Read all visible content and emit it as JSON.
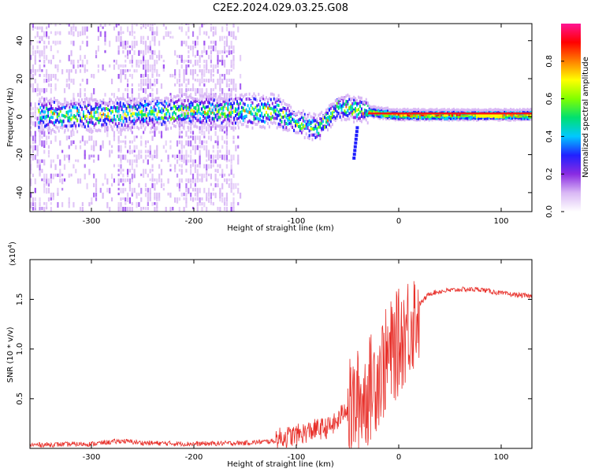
{
  "figure": {
    "title": "C2E2.2024.029.03.25.G08"
  },
  "chart_data": [
    {
      "type": "heatmap",
      "xlabel": "Height of straight line (km)",
      "ylabel": "Frequency (Hz)",
      "xlim": [
        -360,
        130
      ],
      "ylim": [
        -50,
        49
      ],
      "x_ticks": [
        -300,
        -200,
        -100,
        0,
        100
      ],
      "y_ticks": [
        -40,
        -20,
        0,
        20,
        40
      ],
      "colorbar": {
        "label": "Normalized spectral amplitude",
        "range": [
          0,
          1
        ],
        "ticks": [
          "0.0",
          "0.2",
          "0.4",
          "0.6",
          "0.8"
        ],
        "colormap": [
          "#ffffff",
          "#d9b8f5",
          "#8a2be2",
          "#2020ff",
          "#00c8ff",
          "#00e070",
          "#80ff00",
          "#ffff00",
          "#ff8000",
          "#ff0000",
          "#ff1493"
        ]
      },
      "ridge": [
        {
          "x": -350,
          "f": 1
        },
        {
          "x": -300,
          "f": 1
        },
        {
          "x": -250,
          "f": 2
        },
        {
          "x": -200,
          "f": 3
        },
        {
          "x": -150,
          "f": 3
        },
        {
          "x": -120,
          "f": 3
        },
        {
          "x": -100,
          "f": -3
        },
        {
          "x": -80,
          "f": -6
        },
        {
          "x": -60,
          "f": 5
        },
        {
          "x": -40,
          "f": 4
        },
        {
          "x": -20,
          "f": 2
        },
        {
          "x": 0,
          "f": 1
        },
        {
          "x": 50,
          "f": 1
        },
        {
          "x": 100,
          "f": 1
        },
        {
          "x": 130,
          "f": 1
        }
      ]
    },
    {
      "type": "line",
      "xlabel": "Height of straight line (km)",
      "ylabel": "SNR (10 * v/v)",
      "y_multiplier": "(x10",
      "y_multiplier_exp": "4",
      "y_multiplier_close": ")",
      "xlim": [
        -360,
        130
      ],
      "ylim": [
        0,
        1.9
      ],
      "x_ticks": [
        -300,
        -200,
        -100,
        0,
        100
      ],
      "y_ticks": [
        0.5,
        1.0,
        1.5
      ],
      "y_tick_labels": [
        "0.5",
        "1.0",
        "1.5"
      ],
      "color": "#e8302a",
      "series": [
        {
          "x": [
            -360,
            -300,
            -270,
            -250,
            -200,
            -150,
            -120,
            -100,
            -90,
            -80,
            -70,
            -60,
            -50,
            -45,
            -40,
            -35,
            -30,
            -25,
            -20,
            -15,
            -10,
            -5,
            0,
            5,
            10,
            15,
            20,
            25,
            30,
            40,
            60,
            80,
            90,
            100,
            110,
            120,
            130
          ],
          "y": [
            0.01,
            0.02,
            0.05,
            0.03,
            0.02,
            0.03,
            0.05,
            0.09,
            0.12,
            0.15,
            0.16,
            0.22,
            0.4,
            0.45,
            0.52,
            0.55,
            0.62,
            0.72,
            0.8,
            0.88,
            0.96,
            1.05,
            1.12,
            1.22,
            1.3,
            1.37,
            1.45,
            1.5,
            1.56,
            1.58,
            1.6,
            1.6,
            1.58,
            1.56,
            1.55,
            1.54,
            1.53
          ]
        }
      ]
    }
  ]
}
